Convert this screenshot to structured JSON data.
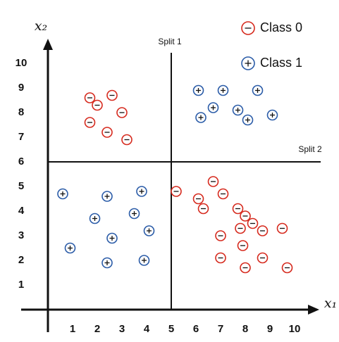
{
  "chart_data": {
    "type": "scatter",
    "x_label": "x₁",
    "y_label": "x₂",
    "xlim": [
      0,
      11
    ],
    "ylim": [
      0,
      11
    ],
    "xticks": [
      1,
      2,
      3,
      4,
      5,
      6,
      7,
      8,
      9,
      10
    ],
    "yticks": [
      1,
      2,
      3,
      4,
      5,
      6,
      7,
      8,
      9,
      10
    ],
    "legend": "upper right",
    "annotations": [
      {
        "text": "Split 1",
        "axis": "x",
        "value": 5
      },
      {
        "text": "Split 2",
        "axis": "y",
        "value": 6
      }
    ],
    "series": [
      {
        "name": "Class 0",
        "color": "#d62a1e",
        "marker": "minus",
        "x": [
          1.7,
          2.0,
          2.6,
          3.0,
          1.7,
          2.4,
          3.2,
          5.2,
          6.7,
          6.1,
          6.3,
          7.1,
          7.7,
          8.0,
          8.3,
          7.8,
          8.7,
          9.5,
          7.0,
          7.9,
          7.0,
          8.7,
          8.0,
          9.7
        ],
        "values": [
          8.6,
          8.3,
          8.7,
          8.0,
          7.6,
          7.2,
          6.9,
          4.8,
          5.2,
          4.5,
          4.1,
          4.7,
          4.1,
          3.8,
          3.5,
          3.3,
          3.2,
          3.3,
          3.0,
          2.6,
          2.1,
          2.1,
          1.7,
          1.7
        ]
      },
      {
        "name": "Class 1",
        "color": "#2b5ca8",
        "marker": "plus",
        "x": [
          6.1,
          7.1,
          8.5,
          6.7,
          7.7,
          6.2,
          8.1,
          9.1,
          0.6,
          2.4,
          3.8,
          1.9,
          3.5,
          4.1,
          2.6,
          0.9,
          2.4,
          3.9
        ],
        "values": [
          8.9,
          8.9,
          8.9,
          8.2,
          8.1,
          7.8,
          7.7,
          7.9,
          4.7,
          4.6,
          4.8,
          3.7,
          3.9,
          3.2,
          2.9,
          2.5,
          1.9,
          2.0
        ]
      }
    ]
  }
}
